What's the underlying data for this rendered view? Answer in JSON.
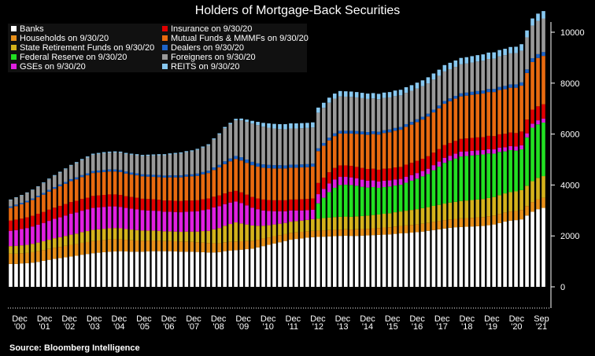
{
  "title": "Holders of Mortgage-Back Securities",
  "source": "Source: Bloomberg Intelligence",
  "chart_data": {
    "type": "bar",
    "stacked": true,
    "title": "Holders of Mortgage-Back Securities",
    "ylim": [
      0,
      10000
    ],
    "yticks": [
      0,
      2000,
      4000,
      6000,
      8000,
      10000
    ],
    "y_axis_side": "right",
    "grid": false,
    "legend_position": "top-left",
    "x_tick_labels": [
      {
        "top": "Dec",
        "bottom": "'00"
      },
      {
        "top": "Dec",
        "bottom": "'01"
      },
      {
        "top": "Dec",
        "bottom": "'02"
      },
      {
        "top": "Dec",
        "bottom": "'03"
      },
      {
        "top": "Dec",
        "bottom": "'04"
      },
      {
        "top": "Dec",
        "bottom": "'05"
      },
      {
        "top": "Dec",
        "bottom": "'06"
      },
      {
        "top": "Dec",
        "bottom": "'07"
      },
      {
        "top": "Dec",
        "bottom": "'08"
      },
      {
        "top": "Dec",
        "bottom": "'09"
      },
      {
        "top": "Dec",
        "bottom": "'10"
      },
      {
        "top": "Dec",
        "bottom": "'11"
      },
      {
        "top": "Dec",
        "bottom": "'12"
      },
      {
        "top": "Dec",
        "bottom": "'13"
      },
      {
        "top": "Dec",
        "bottom": "'14"
      },
      {
        "top": "Dec",
        "bottom": "'15"
      },
      {
        "top": "Dec",
        "bottom": "'16"
      },
      {
        "top": "Dec",
        "bottom": "'17"
      },
      {
        "top": "Dec",
        "bottom": "'18"
      },
      {
        "top": "Dec",
        "bottom": "'19"
      },
      {
        "top": "Dec",
        "bottom": "'20"
      },
      {
        "top": "Sep",
        "bottom": "'21"
      }
    ],
    "series": [
      {
        "name": "Banks",
        "color": "#ffffff",
        "values": [
          900,
          900,
          920,
          930,
          950,
          980,
          1020,
          1060,
          1100,
          1130,
          1160,
          1190,
          1220,
          1260,
          1290,
          1320,
          1340,
          1360,
          1380,
          1390,
          1400,
          1390,
          1380,
          1380,
          1380,
          1390,
          1400,
          1400,
          1400,
          1400,
          1390,
          1380,
          1380,
          1380,
          1370,
          1360,
          1350,
          1350,
          1360,
          1400,
          1420,
          1440,
          1460,
          1480,
          1500,
          1550,
          1600,
          1650,
          1700,
          1750,
          1800,
          1850,
          1880,
          1900,
          1930,
          1950,
          1960,
          1970,
          1980,
          1990,
          2000,
          2010,
          2000,
          2000,
          2010,
          2020,
          2030,
          2040,
          2050,
          2060,
          2080,
          2100,
          2110,
          2130,
          2150,
          2170,
          2200,
          2230,
          2260,
          2290,
          2320,
          2340,
          2350,
          2360,
          2370,
          2380,
          2390,
          2420,
          2450,
          2500,
          2560,
          2600,
          2620,
          2650,
          2800,
          2950,
          3050,
          3100
        ]
      },
      {
        "name": "Households on 9/30/20",
        "color": "#e8901a",
        "values": [
          400,
          400,
          400,
          400,
          410,
          420,
          420,
          430,
          440,
          440,
          450,
          460,
          460,
          470,
          470,
          480,
          480,
          480,
          480,
          480,
          470,
          460,
          450,
          440,
          430,
          420,
          420,
          410,
          400,
          400,
          400,
          400,
          400,
          390,
          380,
          380,
          370,
          360,
          350,
          350,
          350,
          340,
          330,
          320,
          310,
          300,
          300,
          290,
          290,
          280,
          270,
          270,
          260,
          260,
          250,
          250,
          250,
          250,
          250,
          250,
          250,
          250,
          250,
          260,
          260,
          260,
          270,
          270,
          280,
          280,
          290,
          290,
          300,
          300,
          300,
          310,
          310,
          320,
          320,
          330,
          330,
          330,
          340,
          340,
          340,
          350,
          350,
          350,
          350,
          360,
          360,
          360,
          360,
          370,
          370,
          380,
          390,
          400
        ]
      },
      {
        "name": "State Retirement Funds on 9/30/20",
        "color": "#d4b21c",
        "values": [
          300,
          310,
          310,
          320,
          330,
          340,
          350,
          360,
          370,
          380,
          390,
          400,
          410,
          420,
          430,
          440,
          440,
          440,
          440,
          440,
          430,
          420,
          420,
          410,
          400,
          400,
          390,
          390,
          380,
          380,
          380,
          380,
          390,
          400,
          420,
          450,
          480,
          550,
          600,
          650,
          700,
          750,
          700,
          650,
          600,
          550,
          500,
          480,
          460,
          450,
          440,
          440,
          440,
          440,
          450,
          460,
          470,
          480,
          490,
          500,
          500,
          500,
          500,
          510,
          510,
          520,
          520,
          530,
          540,
          550,
          560,
          570,
          580,
          590,
          600,
          610,
          620,
          630,
          640,
          650,
          660,
          670,
          680,
          690,
          700,
          700,
          710,
          720,
          730,
          740,
          750,
          760,
          770,
          780,
          800,
          820,
          840,
          850
        ]
      },
      {
        "name": "Federal Reserve on 9/30/20",
        "color": "#22e022",
        "values": [
          0,
          0,
          0,
          0,
          0,
          0,
          0,
          0,
          0,
          0,
          0,
          0,
          0,
          0,
          0,
          0,
          0,
          0,
          0,
          0,
          0,
          0,
          0,
          0,
          0,
          0,
          0,
          0,
          0,
          0,
          0,
          0,
          0,
          0,
          0,
          0,
          0,
          0,
          0,
          0,
          0,
          0,
          0,
          0,
          0,
          0,
          0,
          0,
          0,
          0,
          0,
          0,
          0,
          0,
          0,
          0,
          600,
          800,
          1000,
          1150,
          1250,
          1250,
          1250,
          1200,
          1150,
          1100,
          1100,
          1050,
          1050,
          1050,
          1050,
          1050,
          1100,
          1150,
          1200,
          1250,
          1300,
          1400,
          1500,
          1600,
          1650,
          1700,
          1750,
          1750,
          1750,
          1750,
          1750,
          1750,
          1700,
          1700,
          1650,
          1650,
          1600,
          1600,
          1900,
          2100,
          2100,
          2100,
          2100,
          2100
        ]
      },
      {
        "name": "GSEs on 9/30/20",
        "color": "#e020e0",
        "values": [
          600,
          620,
          640,
          660,
          680,
          700,
          720,
          740,
          760,
          780,
          800,
          820,
          830,
          840,
          850,
          860,
          860,
          860,
          860,
          850,
          840,
          830,
          820,
          810,
          800,
          790,
          780,
          780,
          770,
          770,
          770,
          770,
          780,
          790,
          800,
          820,
          840,
          860,
          860,
          850,
          840,
          820,
          800,
          750,
          700,
          650,
          600,
          560,
          520,
          490,
          460,
          440,
          420,
          400,
          380,
          370,
          360,
          350,
          340,
          330,
          320,
          310,
          300,
          290,
          280,
          270,
          260,
          250,
          250,
          240,
          240,
          230,
          230,
          220,
          220,
          210,
          210,
          200,
          200,
          200,
          190,
          190,
          190,
          180,
          180,
          180,
          170,
          170,
          170,
          170,
          160,
          160,
          160,
          160,
          160,
          160,
          160,
          160
        ]
      },
      {
        "name": "Insurance on 9/30/20",
        "color": "#e00000",
        "values": [
          400,
          410,
          410,
          420,
          420,
          430,
          430,
          440,
          440,
          450,
          450,
          460,
          460,
          460,
          460,
          470,
          470,
          470,
          470,
          470,
          470,
          460,
          460,
          460,
          450,
          450,
          450,
          440,
          440,
          440,
          440,
          440,
          440,
          430,
          430,
          430,
          430,
          420,
          420,
          420,
          420,
          420,
          420,
          420,
          420,
          420,
          430,
          430,
          430,
          430,
          430,
          430,
          430,
          440,
          440,
          440,
          440,
          440,
          440,
          450,
          450,
          450,
          450,
          450,
          460,
          460,
          460,
          460,
          470,
          470,
          470,
          470,
          480,
          480,
          480,
          480,
          490,
          490,
          490,
          500,
          500,
          500,
          500,
          510,
          510,
          510,
          510,
          520,
          520,
          520,
          530,
          530,
          530,
          540,
          540,
          550,
          550,
          560
        ]
      },
      {
        "name": "Mutual Funds & MMMFs on 9/30/20",
        "color": "#e86a10",
        "values": [
          500,
          530,
          560,
          590,
          620,
          650,
          680,
          710,
          740,
          770,
          800,
          820,
          840,
          860,
          880,
          900,
          900,
          900,
          900,
          900,
          900,
          890,
          880,
          880,
          880,
          880,
          880,
          890,
          900,
          910,
          920,
          930,
          940,
          950,
          960,
          980,
          1000,
          1050,
          1100,
          1150,
          1200,
          1250,
          1250,
          1250,
          1250,
          1250,
          1250,
          1250,
          1250,
          1250,
          1250,
          1250,
          1250,
          1250,
          1250,
          1250,
          1250,
          1250,
          1250,
          1250,
          1250,
          1250,
          1270,
          1300,
          1320,
          1340,
          1360,
          1380,
          1400,
          1420,
          1440,
          1460,
          1480,
          1500,
          1520,
          1540,
          1560,
          1580,
          1600,
          1620,
          1640,
          1660,
          1670,
          1680,
          1690,
          1700,
          1710,
          1720,
          1730,
          1740,
          1750,
          1760,
          1780,
          1800,
          1830,
          1870,
          1900,
          1900
        ]
      },
      {
        "name": "Dealers on 9/30/20",
        "color": "#1e64c8",
        "values": [
          60,
          60,
          60,
          60,
          60,
          60,
          70,
          70,
          70,
          70,
          70,
          80,
          80,
          80,
          80,
          80,
          80,
          80,
          80,
          80,
          80,
          80,
          80,
          80,
          80,
          80,
          80,
          80,
          80,
          80,
          80,
          80,
          80,
          80,
          90,
          90,
          90,
          100,
          100,
          110,
          110,
          120,
          130,
          130,
          130,
          130,
          130,
          130,
          130,
          130,
          120,
          120,
          120,
          120,
          120,
          120,
          110,
          110,
          110,
          110,
          110,
          110,
          110,
          110,
          110,
          110,
          110,
          110,
          110,
          110,
          110,
          110,
          110,
          110,
          110,
          110,
          110,
          110,
          110,
          110,
          110,
          110,
          120,
          120,
          120,
          120,
          120,
          120,
          120,
          120,
          130,
          130,
          130,
          130,
          140,
          150,
          150,
          150
        ]
      },
      {
        "name": "Foreigners on 9/30/20",
        "color": "#999999",
        "values": [
          250,
          270,
          290,
          310,
          330,
          350,
          380,
          410,
          440,
          470,
          500,
          530,
          560,
          590,
          620,
          640,
          650,
          660,
          660,
          670,
          680,
          690,
          700,
          710,
          720,
          740,
          760,
          780,
          800,
          820,
          840,
          860,
          880,
          900,
          930,
          960,
          1000,
          1100,
          1200,
          1300,
          1350,
          1400,
          1450,
          1480,
          1500,
          1500,
          1480,
          1460,
          1440,
          1420,
          1420,
          1420,
          1420,
          1420,
          1420,
          1420,
          1400,
          1380,
          1370,
          1360,
          1350,
          1340,
          1330,
          1320,
          1310,
          1300,
          1290,
          1280,
          1270,
          1260,
          1250,
          1240,
          1230,
          1220,
          1210,
          1200,
          1190,
          1180,
          1170,
          1160,
          1150,
          1140,
          1140,
          1140,
          1150,
          1160,
          1170,
          1180,
          1190,
          1200,
          1210,
          1220,
          1230,
          1240,
          1260,
          1280,
          1300,
          1320
        ]
      },
      {
        "name": "REITS on 9/30/20",
        "color": "#88c8f0",
        "values": [
          20,
          20,
          20,
          20,
          20,
          20,
          30,
          30,
          30,
          30,
          30,
          30,
          40,
          40,
          40,
          40,
          40,
          40,
          40,
          40,
          40,
          40,
          40,
          40,
          40,
          40,
          40,
          40,
          40,
          40,
          40,
          40,
          40,
          40,
          40,
          40,
          40,
          40,
          40,
          50,
          50,
          60,
          70,
          90,
          110,
          130,
          150,
          170,
          180,
          190,
          200,
          200,
          200,
          200,
          200,
          200,
          200,
          200,
          200,
          200,
          210,
          210,
          210,
          210,
          210,
          210,
          210,
          210,
          210,
          210,
          220,
          220,
          220,
          220,
          230,
          230,
          240,
          240,
          240,
          250,
          250,
          250,
          250,
          250,
          250,
          250,
          250,
          250,
          250,
          250,
          250,
          250,
          250,
          260,
          270,
          280,
          290,
          290
        ]
      }
    ],
    "legend_order": [
      "Banks",
      "Insurance on 9/30/20",
      "Households on 9/30/20",
      "Mutual Funds & MMMFs on 9/30/20",
      "State Retirement Funds on 9/30/20",
      "Dealers on 9/30/20",
      "Federal Reserve on 9/30/20",
      "Foreigners on 9/30/20",
      "GSEs on 9/30/20",
      "REITS on 9/30/20"
    ]
  }
}
